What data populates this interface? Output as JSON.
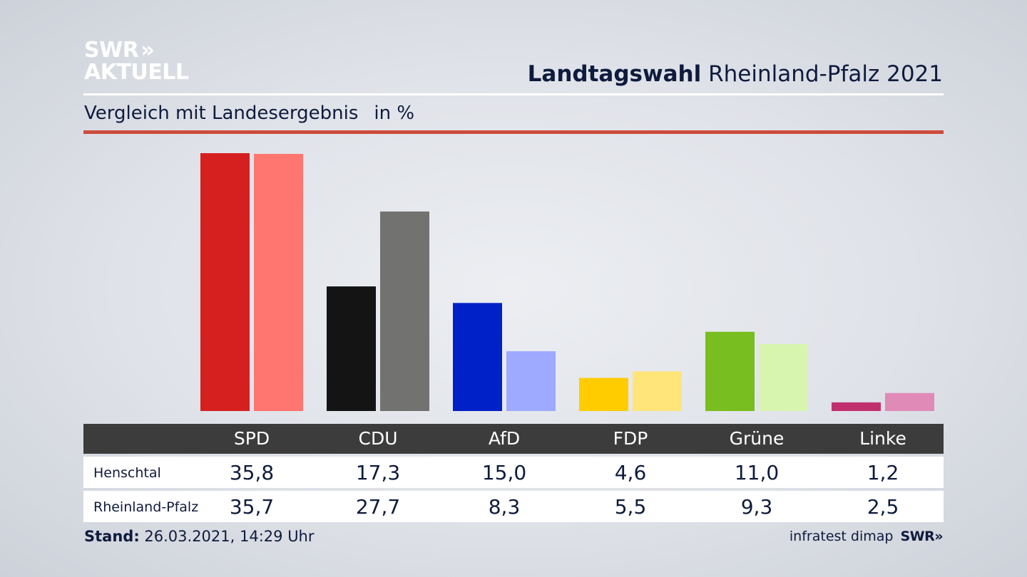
{
  "brand": {
    "logo_line1": "SWR",
    "logo_chevrons": "»",
    "logo_line2": "AKTUELL",
    "footer_logo": "SWR»"
  },
  "header": {
    "title_bold": "Landtagswahl",
    "title_rest": "Rheinland-Pfalz 2021",
    "subtitle": "Vergleich mit Landesergebnis",
    "unit": "in %"
  },
  "table": {
    "rows": [
      {
        "label": "Henschtal",
        "values": [
          "35,8",
          "17,3",
          "15,0",
          "4,6",
          "11,0",
          "1,2"
        ]
      },
      {
        "label": "Rheinland-Pfalz",
        "values": [
          "35,7",
          "27,7",
          "8,3",
          "5,5",
          "9,3",
          "2,5"
        ]
      }
    ]
  },
  "footer": {
    "stand_label": "Stand:",
    "stand_value": "26.03.2021, 14:29 Uhr",
    "source": "infratest dimap"
  },
  "chart_data": {
    "type": "bar",
    "title": "Landtagswahl Rheinland-Pfalz 2021",
    "subtitle": "Vergleich mit Landesergebnis",
    "ylabel": "in %",
    "grid": false,
    "legend": "none",
    "ylim": [
      0,
      35.8
    ],
    "categories": [
      "SPD",
      "CDU",
      "AfD",
      "FDP",
      "Grüne",
      "Linke"
    ],
    "series": [
      {
        "name": "Henschtal",
        "values": [
          35.8,
          17.3,
          15.0,
          4.6,
          11.0,
          1.2
        ],
        "colors": [
          "#d62020",
          "#141414",
          "#0020c8",
          "#ffcc00",
          "#78be20",
          "#c0306e"
        ]
      },
      {
        "name": "Rheinland-Pfalz",
        "values": [
          35.7,
          27.7,
          8.3,
          5.5,
          9.3,
          2.5
        ],
        "colors": [
          "#ff7570",
          "#727270",
          "#9daaff",
          "#ffe57a",
          "#d8f5b0",
          "#e08ab8"
        ]
      }
    ]
  }
}
